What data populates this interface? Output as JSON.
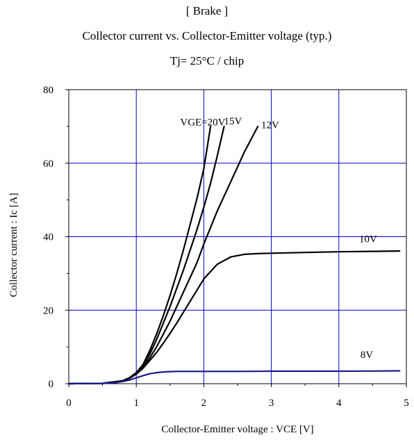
{
  "chart_data": {
    "type": "line",
    "title": "[ Brake ]",
    "subtitle": "Collector current vs. Collector-Emitter voltage (typ.)",
    "condition": "Tj= 25°C / chip",
    "xlabel": "Collector-Emitter voltage : VCE [V]",
    "ylabel": "Collector current : Ic [A]",
    "xlim": [
      0,
      5
    ],
    "ylim": [
      0,
      80
    ],
    "xticks": [
      "0",
      "1",
      "2",
      "3",
      "4",
      "5"
    ],
    "yticks": [
      "0",
      "20",
      "40",
      "60",
      "80"
    ],
    "grid": true,
    "grid_color": "#0000cc",
    "series": [
      {
        "name": "VGE=20V",
        "color": "#000000",
        "x": [
          0,
          0.5,
          0.8,
          0.9,
          1.0,
          1.1,
          1.2,
          1.3,
          1.4,
          1.5,
          1.6,
          1.7,
          1.8,
          1.9,
          2.0,
          2.1
        ],
        "y": [
          0,
          0.1,
          0.8,
          1.6,
          3.0,
          5.2,
          9.0,
          13.5,
          18.5,
          24.0,
          30.0,
          36.5,
          43.5,
          50.5,
          58.5,
          70.0
        ]
      },
      {
        "name": "15V",
        "color": "#000000",
        "x": [
          0,
          0.5,
          0.8,
          0.9,
          1.0,
          1.1,
          1.2,
          1.3,
          1.4,
          1.5,
          1.6,
          1.7,
          1.8,
          1.9,
          2.0,
          2.1,
          2.2,
          2.3
        ],
        "y": [
          0,
          0.1,
          0.8,
          1.6,
          3.0,
          5.0,
          8.0,
          12.0,
          16.5,
          21.0,
          26.0,
          31.0,
          36.5,
          42.0,
          48.0,
          54.5,
          62.0,
          70.0
        ]
      },
      {
        "name": "12V",
        "color": "#000000",
        "x": [
          0,
          0.5,
          0.8,
          0.9,
          1.0,
          1.1,
          1.2,
          1.3,
          1.4,
          1.5,
          1.6,
          1.7,
          1.8,
          1.9,
          2.0,
          2.2,
          2.4,
          2.6,
          2.8
        ],
        "y": [
          0,
          0.1,
          0.8,
          1.5,
          2.8,
          4.5,
          7.0,
          10.0,
          13.5,
          17.0,
          21.0,
          25.0,
          29.0,
          33.0,
          38.0,
          47.0,
          55.0,
          63.0,
          70.0
        ]
      },
      {
        "name": "10V",
        "color": "#000000",
        "x": [
          0,
          0.5,
          0.8,
          0.9,
          1.0,
          1.1,
          1.2,
          1.3,
          1.4,
          1.5,
          1.6,
          1.7,
          1.8,
          1.9,
          2.0,
          2.2,
          2.4,
          2.6,
          2.8,
          3.0,
          3.5,
          4.0,
          4.5,
          4.9
        ],
        "y": [
          0,
          0.1,
          0.8,
          1.5,
          2.6,
          4.2,
          6.3,
          8.5,
          11.0,
          13.7,
          16.5,
          19.5,
          22.5,
          25.5,
          28.5,
          32.5,
          34.5,
          35.2,
          35.4,
          35.5,
          35.7,
          35.9,
          36.0,
          36.1
        ]
      },
      {
        "name": "8V",
        "color": "#1a1a8c",
        "x": [
          0,
          0.5,
          0.7,
          0.8,
          0.9,
          1.0,
          1.1,
          1.2,
          1.3,
          1.4,
          1.5,
          1.6,
          2.0,
          2.5,
          3.0,
          3.5,
          4.0,
          4.5,
          4.9
        ],
        "y": [
          0,
          0.1,
          0.3,
          0.6,
          1.0,
          1.6,
          2.2,
          2.7,
          3.0,
          3.2,
          3.3,
          3.35,
          3.35,
          3.35,
          3.4,
          3.4,
          3.4,
          3.45,
          3.5
        ]
      }
    ],
    "annotations": [
      {
        "text": "VGE=20V",
        "x": 1.65,
        "y": 70.3
      },
      {
        "text": "15V",
        "x": 2.3,
        "y": 70.5
      },
      {
        "text": "12V",
        "x": 2.85,
        "y": 69.5
      },
      {
        "text": "10V",
        "x": 4.3,
        "y": 38.5
      },
      {
        "text": "8V",
        "x": 4.32,
        "y": 7.0
      }
    ]
  }
}
